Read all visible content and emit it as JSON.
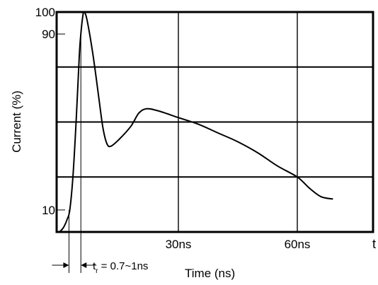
{
  "chart_data": {
    "type": "line",
    "title": "",
    "xlabel": "Time (ns)",
    "ylabel": "Current (%)",
    "x_ticks": [
      {
        "label": "30ns",
        "value": 30
      },
      {
        "label": "60ns",
        "value": 60
      }
    ],
    "x_end_label": "t",
    "y_ticks": [
      {
        "label": "100",
        "value": 100
      },
      {
        "label": "90",
        "value": 90
      },
      {
        "label": "10",
        "value": 10
      }
    ],
    "xlim": [
      0,
      78
    ],
    "ylim": [
      0,
      100
    ],
    "grid": true,
    "annotation": {
      "t": "t",
      "sub": "r",
      "rest": " = 0.7~1ns",
      "rise_start_x": 2.4,
      "rise_end_x": 5.4
    },
    "series": [
      {
        "values": [
          [
            0.0,
            0
          ],
          [
            1.0,
            2
          ],
          [
            2.0,
            6
          ],
          [
            2.6,
            10
          ],
          [
            3.4,
            25
          ],
          [
            4.2,
            50
          ],
          [
            5.0,
            80
          ],
          [
            5.4,
            90
          ],
          [
            5.8,
            97
          ],
          [
            6.2,
            100
          ],
          [
            7.0,
            96
          ],
          [
            8.5,
            80
          ],
          [
            10.0,
            60
          ],
          [
            11.0,
            47
          ],
          [
            12.0,
            40
          ],
          [
            13.0,
            39
          ],
          [
            15.0,
            42
          ],
          [
            18.0,
            48
          ],
          [
            20.0,
            54
          ],
          [
            22.0,
            56
          ],
          [
            25.0,
            55
          ],
          [
            30.0,
            52
          ],
          [
            35.0,
            49
          ],
          [
            40.0,
            45
          ],
          [
            45.0,
            41
          ],
          [
            50.0,
            36
          ],
          [
            55.0,
            30
          ],
          [
            60.0,
            25
          ],
          [
            63.0,
            20
          ],
          [
            66.0,
            16
          ],
          [
            69.0,
            15
          ]
        ]
      }
    ]
  }
}
